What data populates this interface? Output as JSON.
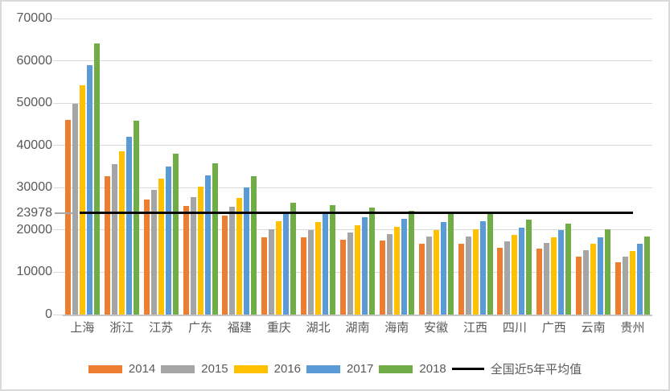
{
  "chart_data": {
    "type": "bar",
    "title": "",
    "categories": [
      "上海",
      "浙江",
      "江苏",
      "广东",
      "福建",
      "重庆",
      "湖北",
      "湖南",
      "海南",
      "安徽",
      "江西",
      "四川",
      "广西",
      "云南",
      "贵州"
    ],
    "series": [
      {
        "name": "2014",
        "color": "#ED7D31",
        "values": [
          45966,
          32658,
          27173,
          25685,
          23331,
          18352,
          18283,
          17622,
          17476,
          16796,
          16734,
          15749,
          15557,
          13772,
          12371
        ]
      },
      {
        "name": "2015",
        "color": "#A5A5A5",
        "values": [
          49867,
          35537,
          29539,
          27859,
          25404,
          20110,
          20025,
          19317,
          18979,
          18363,
          18437,
          17221,
          16873,
          15223,
          13697
        ]
      },
      {
        "name": "2016",
        "color": "#FFC000",
        "values": [
          54305,
          38529,
          32070,
          30296,
          27608,
          22034,
          21787,
          21115,
          20653,
          19998,
          20110,
          18808,
          18305,
          16720,
          15121
        ]
      },
      {
        "name": "2017",
        "color": "#5B9BD5",
        "values": [
          58988,
          42046,
          35024,
          33003,
          30048,
          24153,
          23757,
          23103,
          22553,
          21863,
          22031,
          20580,
          19905,
          18348,
          16704
        ]
      },
      {
        "name": "2018",
        "color": "#70AD47",
        "values": [
          64183,
          45840,
          38096,
          35810,
          32644,
          26386,
          25814,
          25241,
          24579,
          23984,
          24080,
          22461,
          21485,
          20084,
          18430
        ]
      }
    ],
    "average_line": {
      "label": "全国近5年平均值",
      "value": 23978,
      "value_label": "23978",
      "color": "#000000"
    },
    "y_axis": {
      "min": 0,
      "max": 70000,
      "ticks": [
        0,
        10000,
        20000,
        30000,
        40000,
        50000,
        60000,
        70000
      ],
      "tick_labels": [
        "0",
        "10000",
        "20000",
        "30000",
        "40000",
        "50000",
        "60000",
        "70000"
      ]
    },
    "grid": true,
    "legend_position": "bottom"
  },
  "colors": {
    "axis_text": "#595959",
    "gridline": "#D9D9D9",
    "axis_line": "#C6C6C6",
    "chart_border": "#D9D9D9",
    "background": "#FFFFFF"
  }
}
